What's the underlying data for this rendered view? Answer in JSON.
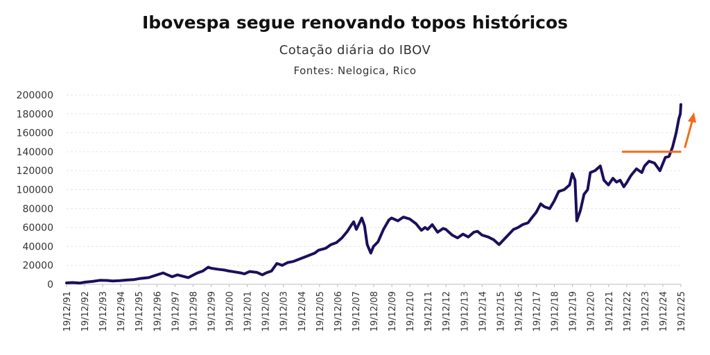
{
  "title": "Ibovespa segue renovando topos históricos",
  "subtitle": "Cotação diária do IBOV",
  "source": "Fontes: Nelogica, Rico",
  "colors": {
    "line": "#1b0f5c",
    "annotation": "#f26a1b",
    "grid": "#e6e6e6"
  },
  "chart_data": {
    "type": "line",
    "title": "Ibovespa segue renovando topos históricos",
    "subtitle": "Cotação diária do IBOV",
    "ylim": [
      0,
      200000
    ],
    "yticks": [
      "0",
      "20000",
      "40000",
      "60000",
      "80000",
      "100000",
      "120000",
      "140000",
      "160000",
      "180000",
      "200000"
    ],
    "categories": [
      "19/12/91",
      "19/12/92",
      "19/12/93",
      "19/12/94",
      "19/12/95",
      "19/12/96",
      "19/12/97",
      "19/12/98",
      "19/12/99",
      "19/12/00",
      "19/12/01",
      "19/12/02",
      "19/12/03",
      "19/12/04",
      "19/12/05",
      "19/12/06",
      "19/12/07",
      "19/12/08",
      "19/12/09",
      "19/12/10",
      "19/12/11",
      "19/12/12",
      "19/12/13",
      "19/12/14",
      "19/12/15",
      "19/12/16",
      "19/12/17",
      "19/12/18",
      "19/12/19",
      "19/12/20",
      "19/12/21",
      "19/12/22",
      "19/12/23",
      "19/12/24",
      "19/12/25"
    ],
    "grid": "horizontal dashed",
    "series": [
      {
        "x": [
          1991.96,
          1992.3,
          1992.7,
          1993.0,
          1993.4,
          1993.8,
          1994.2,
          1994.5,
          1994.9,
          1995.3,
          1995.7,
          1996.0,
          1996.5,
          1996.9,
          1997.3,
          1997.55,
          1997.8,
          1998.1,
          1998.4,
          1998.7,
          1998.9,
          1999.2,
          1999.5,
          1999.8,
          1999.95,
          2000.3,
          2000.7,
          2000.95,
          2001.3,
          2001.6,
          2001.8,
          2002.1,
          2002.5,
          2002.8,
          2003.0,
          2003.3,
          2003.6,
          2003.9,
          2004.2,
          2004.5,
          2004.9,
          2005.3,
          2005.7,
          2005.9,
          2006.3,
          2006.6,
          2006.9,
          2007.2,
          2007.5,
          2007.7,
          2007.85,
          2008.0,
          2008.3,
          2008.45,
          2008.6,
          2008.8,
          2008.95,
          2009.2,
          2009.5,
          2009.8,
          2009.95,
          2010.3,
          2010.6,
          2010.95,
          2011.3,
          2011.6,
          2011.8,
          2011.95,
          2012.2,
          2012.5,
          2012.8,
          2012.95,
          2013.3,
          2013.6,
          2013.9,
          2014.2,
          2014.5,
          2014.7,
          2014.95,
          2015.3,
          2015.6,
          2015.9,
          2016.1,
          2016.4,
          2016.7,
          2016.95,
          2017.2,
          2017.5,
          2017.7,
          2017.95,
          2018.2,
          2018.4,
          2018.7,
          2018.95,
          2019.2,
          2019.5,
          2019.8,
          2019.95,
          2020.1,
          2020.2,
          2020.4,
          2020.6,
          2020.8,
          2020.95,
          2021.2,
          2021.5,
          2021.7,
          2021.95,
          2022.2,
          2022.4,
          2022.6,
          2022.8,
          2022.95,
          2023.2,
          2023.5,
          2023.8,
          2023.95,
          2024.2,
          2024.5,
          2024.8,
          2024.95,
          2025.1,
          2025.3,
          2025.5,
          2025.7,
          2025.85,
          2025.93,
          2025.96
        ],
        "values": [
          1500,
          1800,
          1300,
          2300,
          3000,
          4200,
          4000,
          3500,
          3800,
          4500,
          5000,
          6000,
          7000,
          9500,
          12000,
          10000,
          8000,
          10000,
          8500,
          7000,
          9000,
          12000,
          14000,
          18000,
          17000,
          16000,
          15000,
          14000,
          13000,
          12000,
          11000,
          13500,
          12500,
          10000,
          12000,
          14000,
          22000,
          20000,
          23000,
          24000,
          27000,
          30000,
          33000,
          36000,
          38000,
          42000,
          44000,
          49000,
          56000,
          62000,
          66000,
          58000,
          70000,
          62000,
          42000,
          33000,
          40000,
          45000,
          58000,
          68000,
          70000,
          67000,
          71000,
          69000,
          64000,
          57000,
          60000,
          58000,
          63000,
          55000,
          59000,
          58000,
          52000,
          49000,
          53000,
          50000,
          55000,
          56000,
          52000,
          50000,
          47000,
          42000,
          46000,
          52000,
          58000,
          60000,
          63000,
          65000,
          70000,
          76000,
          85000,
          82000,
          80000,
          88000,
          98000,
          100000,
          105000,
          117000,
          110000,
          67000,
          78000,
          95000,
          100000,
          118000,
          120000,
          125000,
          110000,
          105000,
          112000,
          108000,
          110000,
          103000,
          107000,
          115000,
          122000,
          118000,
          125000,
          130000,
          128000,
          120000,
          127000,
          134000,
          135000,
          145000,
          160000,
          175000,
          180000,
          190000
        ]
      }
    ],
    "annotations": [
      {
        "type": "horizontal-line",
        "y": 140000,
        "x_from": 2022.7,
        "x_to": 2025.98
      },
      {
        "type": "arrow",
        "description": "upward trend"
      }
    ]
  }
}
